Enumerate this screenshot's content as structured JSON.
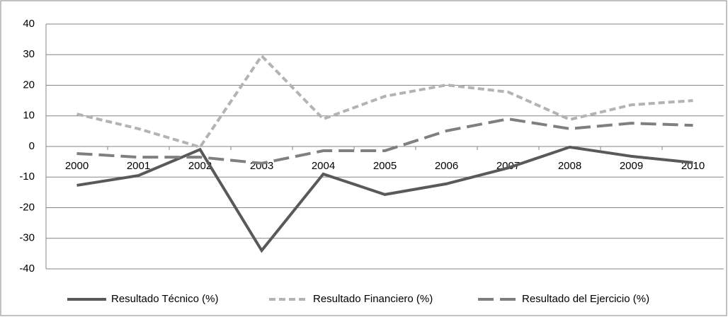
{
  "chart_data": {
    "type": "line",
    "categories": [
      "2000",
      "2001",
      "2002",
      "2003",
      "2004",
      "2005",
      "2006",
      "2007",
      "2008",
      "2009",
      "2010"
    ],
    "series": [
      {
        "name": "Resultado Técnico (%)",
        "color": "#595959",
        "dash": "solid",
        "values": [
          -12.7,
          -9.5,
          -1,
          -34,
          -9,
          -15.7,
          -12.2,
          -7,
          -0.2,
          -3.2,
          -5.3
        ]
      },
      {
        "name": "Resultado Financiero (%)",
        "color": "#b3b3b3",
        "dash": "short",
        "values": [
          10.6,
          5.8,
          -0.2,
          29.6,
          9,
          16.4,
          20.1,
          17.8,
          8.8,
          13.6,
          15
        ]
      },
      {
        "name": "Resultado del Ejercicio (%)",
        "color": "#7f7f7f",
        "dash": "long",
        "values": [
          -2.3,
          -3.5,
          -3.5,
          -5.5,
          -1.4,
          -1.4,
          5.1,
          9,
          5.8,
          7.6,
          6.9
        ]
      }
    ],
    "ylim": [
      -40,
      40
    ],
    "yticks": [
      -40,
      -30,
      -20,
      -10,
      0,
      10,
      20,
      30,
      40
    ],
    "grid": true,
    "legend": "bottom"
  }
}
